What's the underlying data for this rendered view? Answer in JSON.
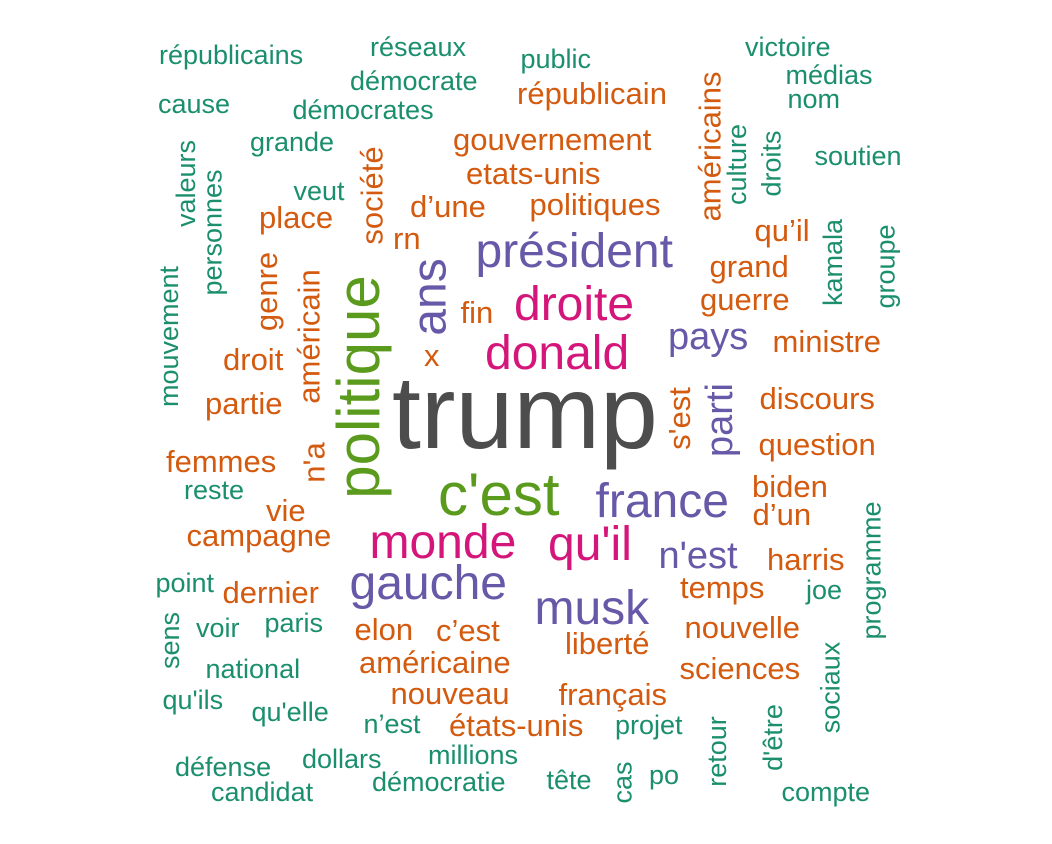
{
  "colors": {
    "trump": "#4d4d4d",
    "green": "#5a9a1c",
    "magenta": "#d4157a",
    "purple": "#6758a8",
    "orange": "#d35a0f",
    "teal": "#1b8f6d"
  },
  "words": [
    {
      "text": "trump",
      "color": "trump",
      "size": "xxl",
      "rotated": false
    },
    {
      "text": "politique",
      "color": "green",
      "size": "xl",
      "rotated": true
    },
    {
      "text": "c'est",
      "color": "green",
      "size": "xl",
      "rotated": false
    },
    {
      "text": "donald",
      "color": "magenta",
      "size": "l",
      "rotated": false
    },
    {
      "text": "droite",
      "color": "magenta",
      "size": "l",
      "rotated": false
    },
    {
      "text": "monde",
      "color": "magenta",
      "size": "l",
      "rotated": false
    },
    {
      "text": "qu'il",
      "color": "magenta",
      "size": "l",
      "rotated": false
    },
    {
      "text": "président",
      "color": "purple",
      "size": "l",
      "rotated": false
    },
    {
      "text": "france",
      "color": "purple",
      "size": "l",
      "rotated": false
    },
    {
      "text": "gauche",
      "color": "purple",
      "size": "l",
      "rotated": false
    },
    {
      "text": "musk",
      "color": "purple",
      "size": "l",
      "rotated": false
    },
    {
      "text": "ans",
      "color": "purple",
      "size": "l",
      "rotated": true
    },
    {
      "text": "pays",
      "color": "purple",
      "size": "m",
      "rotated": false
    },
    {
      "text": "n'est",
      "color": "purple",
      "size": "m",
      "rotated": false
    },
    {
      "text": "parti",
      "color": "purple",
      "size": "m",
      "rotated": true
    },
    {
      "text": "gouvernement",
      "color": "orange",
      "size": "s",
      "rotated": false
    },
    {
      "text": "etats-unis",
      "color": "orange",
      "size": "s",
      "rotated": false
    },
    {
      "text": "politiques",
      "color": "orange",
      "size": "s",
      "rotated": false
    },
    {
      "text": "d’une",
      "color": "orange",
      "size": "s",
      "rotated": false
    },
    {
      "text": "républicain",
      "color": "orange",
      "size": "s",
      "rotated": false
    },
    {
      "text": "américains",
      "color": "orange",
      "size": "s",
      "rotated": true
    },
    {
      "text": "société",
      "color": "orange",
      "size": "s",
      "rotated": true
    },
    {
      "text": "place",
      "color": "orange",
      "size": "s",
      "rotated": false
    },
    {
      "text": "rn",
      "color": "orange",
      "size": "s",
      "rotated": false
    },
    {
      "text": "genre",
      "color": "orange",
      "size": "s",
      "rotated": true
    },
    {
      "text": "américain",
      "color": "orange",
      "size": "s",
      "rotated": true
    },
    {
      "text": "fin",
      "color": "orange",
      "size": "s",
      "rotated": false
    },
    {
      "text": "x",
      "color": "orange",
      "size": "s",
      "rotated": false
    },
    {
      "text": "droit",
      "color": "orange",
      "size": "s",
      "rotated": false
    },
    {
      "text": "partie",
      "color": "orange",
      "size": "s",
      "rotated": false
    },
    {
      "text": "n'a",
      "color": "orange",
      "size": "s",
      "rotated": true
    },
    {
      "text": "femmes",
      "color": "orange",
      "size": "s",
      "rotated": false
    },
    {
      "text": "vie",
      "color": "orange",
      "size": "s",
      "rotated": false
    },
    {
      "text": "campagne",
      "color": "orange",
      "size": "s",
      "rotated": false
    },
    {
      "text": "dernier",
      "color": "orange",
      "size": "s",
      "rotated": false
    },
    {
      "text": "elon",
      "color": "orange",
      "size": "s",
      "rotated": false
    },
    {
      "text": "c’est",
      "color": "orange",
      "size": "s",
      "rotated": false
    },
    {
      "text": "liberté",
      "color": "orange",
      "size": "s",
      "rotated": false
    },
    {
      "text": "américaine",
      "color": "orange",
      "size": "s",
      "rotated": false
    },
    {
      "text": "nouveau",
      "color": "orange",
      "size": "s",
      "rotated": false
    },
    {
      "text": "français",
      "color": "orange",
      "size": "s",
      "rotated": false
    },
    {
      "text": "états-unis",
      "color": "orange",
      "size": "s",
      "rotated": false
    },
    {
      "text": "qu’il",
      "color": "orange",
      "size": "s",
      "rotated": false
    },
    {
      "text": "grand",
      "color": "orange",
      "size": "s",
      "rotated": false
    },
    {
      "text": "guerre",
      "color": "orange",
      "size": "s",
      "rotated": false
    },
    {
      "text": "ministre",
      "color": "orange",
      "size": "s",
      "rotated": false
    },
    {
      "text": "discours",
      "color": "orange",
      "size": "s",
      "rotated": false
    },
    {
      "text": "question",
      "color": "orange",
      "size": "s",
      "rotated": false
    },
    {
      "text": "s'est",
      "color": "orange",
      "size": "s",
      "rotated": true
    },
    {
      "text": "biden",
      "color": "orange",
      "size": "s",
      "rotated": false
    },
    {
      "text": "d’un",
      "color": "orange",
      "size": "s",
      "rotated": false
    },
    {
      "text": "harris",
      "color": "orange",
      "size": "s",
      "rotated": false
    },
    {
      "text": "temps",
      "color": "orange",
      "size": "s",
      "rotated": false
    },
    {
      "text": "nouvelle",
      "color": "orange",
      "size": "s",
      "rotated": false
    },
    {
      "text": "sciences",
      "color": "orange",
      "size": "s",
      "rotated": false
    },
    {
      "text": "républicains",
      "color": "teal",
      "size": "xs",
      "rotated": false
    },
    {
      "text": "réseaux",
      "color": "teal",
      "size": "xs",
      "rotated": false
    },
    {
      "text": "public",
      "color": "teal",
      "size": "xs",
      "rotated": false
    },
    {
      "text": "démocrate",
      "color": "teal",
      "size": "xs",
      "rotated": false
    },
    {
      "text": "victoire",
      "color": "teal",
      "size": "xs",
      "rotated": false
    },
    {
      "text": "médias",
      "color": "teal",
      "size": "xs",
      "rotated": false
    },
    {
      "text": "nom",
      "color": "teal",
      "size": "xs",
      "rotated": false
    },
    {
      "text": "cause",
      "color": "teal",
      "size": "xs",
      "rotated": false
    },
    {
      "text": "démocrates",
      "color": "teal",
      "size": "xs",
      "rotated": false
    },
    {
      "text": "grande",
      "color": "teal",
      "size": "xs",
      "rotated": false
    },
    {
      "text": "valeurs",
      "color": "teal",
      "size": "xs",
      "rotated": true
    },
    {
      "text": "personnes",
      "color": "teal",
      "size": "xs",
      "rotated": true
    },
    {
      "text": "veut",
      "color": "teal",
      "size": "xs",
      "rotated": false
    },
    {
      "text": "mouvement",
      "color": "teal",
      "size": "xs",
      "rotated": true
    },
    {
      "text": "culture",
      "color": "teal",
      "size": "xs",
      "rotated": true
    },
    {
      "text": "droits",
      "color": "teal",
      "size": "xs",
      "rotated": true
    },
    {
      "text": "soutien",
      "color": "teal",
      "size": "xs",
      "rotated": false
    },
    {
      "text": "kamala",
      "color": "teal",
      "size": "xs",
      "rotated": true
    },
    {
      "text": "groupe",
      "color": "teal",
      "size": "xs",
      "rotated": true
    },
    {
      "text": "reste",
      "color": "teal",
      "size": "xs",
      "rotated": false
    },
    {
      "text": "point",
      "color": "teal",
      "size": "xs",
      "rotated": false
    },
    {
      "text": "voir",
      "color": "teal",
      "size": "xs",
      "rotated": false
    },
    {
      "text": "paris",
      "color": "teal",
      "size": "xs",
      "rotated": false
    },
    {
      "text": "sens",
      "color": "teal",
      "size": "xs",
      "rotated": true
    },
    {
      "text": "national",
      "color": "teal",
      "size": "xs",
      "rotated": false
    },
    {
      "text": "qu'ils",
      "color": "teal",
      "size": "xs",
      "rotated": false
    },
    {
      "text": "qu'elle",
      "color": "teal",
      "size": "xs",
      "rotated": false
    },
    {
      "text": "n’est",
      "color": "teal",
      "size": "xs",
      "rotated": false
    },
    {
      "text": "projet",
      "color": "teal",
      "size": "xs",
      "rotated": false
    },
    {
      "text": "millions",
      "color": "teal",
      "size": "xs",
      "rotated": false
    },
    {
      "text": "dollars",
      "color": "teal",
      "size": "xs",
      "rotated": false
    },
    {
      "text": "défense",
      "color": "teal",
      "size": "xs",
      "rotated": false
    },
    {
      "text": "candidat",
      "color": "teal",
      "size": "xs",
      "rotated": false
    },
    {
      "text": "démocratie",
      "color": "teal",
      "size": "xs",
      "rotated": false
    },
    {
      "text": "tête",
      "color": "teal",
      "size": "xs",
      "rotated": false
    },
    {
      "text": "cas",
      "color": "teal",
      "size": "xs",
      "rotated": true
    },
    {
      "text": "po",
      "color": "teal",
      "size": "xs",
      "rotated": false
    },
    {
      "text": "retour",
      "color": "teal",
      "size": "xs",
      "rotated": true
    },
    {
      "text": "d'être",
      "color": "teal",
      "size": "xs",
      "rotated": true
    },
    {
      "text": "compte",
      "color": "teal",
      "size": "xs",
      "rotated": false
    },
    {
      "text": "joe",
      "color": "teal",
      "size": "xs",
      "rotated": false
    },
    {
      "text": "sociaux",
      "color": "teal",
      "size": "xs",
      "rotated": true
    },
    {
      "text": "programme",
      "color": "teal",
      "size": "xs",
      "rotated": true
    }
  ]
}
